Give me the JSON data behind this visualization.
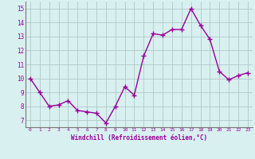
{
  "x": [
    0,
    1,
    2,
    3,
    4,
    5,
    6,
    7,
    8,
    9,
    10,
    11,
    12,
    13,
    14,
    15,
    16,
    17,
    18,
    19,
    20,
    21,
    22,
    23
  ],
  "y": [
    10.0,
    9.0,
    8.0,
    8.1,
    8.4,
    7.7,
    7.6,
    7.5,
    6.8,
    8.0,
    9.4,
    8.8,
    11.6,
    13.2,
    13.1,
    13.5,
    13.5,
    15.0,
    13.8,
    12.8,
    10.5,
    9.9,
    10.2,
    10.4
  ],
  "xlabel": "Windchill (Refroidissement éolien,°C)",
  "xlim": [
    -0.5,
    23.5
  ],
  "ylim": [
    6.5,
    15.5
  ],
  "yticks": [
    7,
    8,
    9,
    10,
    11,
    12,
    13,
    14,
    15
  ],
  "xticks": [
    0,
    1,
    2,
    3,
    4,
    5,
    6,
    7,
    8,
    9,
    10,
    11,
    12,
    13,
    14,
    15,
    16,
    17,
    18,
    19,
    20,
    21,
    22,
    23
  ],
  "line_color": "#990099",
  "marker_color": "#990099",
  "bg_color": "#d8f0f0",
  "grid_color": "#b0c8c8",
  "tick_label_color": "#990099",
  "xlabel_color": "#990099",
  "marker_size": 2.5,
  "line_width": 1.0
}
